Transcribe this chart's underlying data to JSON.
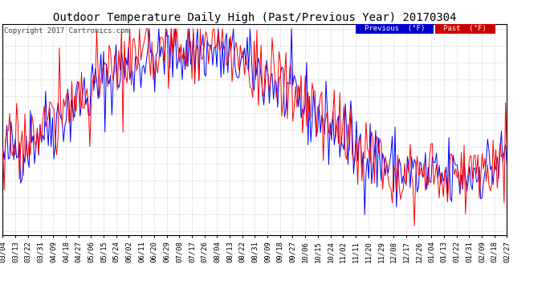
{
  "title": "Outdoor Temperature Daily High (Past/Previous Year) 20170304",
  "copyright": "Copyright 2017 Cartronics.com",
  "yticks": [
    2.6,
    10.4,
    18.2,
    26.0,
    33.8,
    41.6,
    49.5,
    57.3,
    65.1,
    72.9,
    80.7,
    88.5,
    96.3
  ],
  "ymin": 1.0,
  "ymax": 98.5,
  "legend_previous_label": "Previous  (°F)",
  "legend_past_label": "Past  (°F)",
  "previous_color": "#0000ff",
  "past_color": "#ff0000",
  "legend_previous_bg": "#0000cc",
  "legend_past_bg": "#cc0000",
  "background_color": "#ffffff",
  "grid_color": "#cccccc",
  "title_fontsize": 10,
  "tick_fontsize": 7,
  "xlabel_fontsize": 6.5,
  "copyright_fontsize": 6.5,
  "xtick_labels": [
    "03/04",
    "03/13",
    "03/22",
    "03/31",
    "04/09",
    "04/18",
    "04/27",
    "05/06",
    "05/15",
    "05/24",
    "06/02",
    "06/11",
    "06/20",
    "06/29",
    "07/08",
    "07/17",
    "07/26",
    "08/04",
    "08/13",
    "08/22",
    "08/31",
    "09/09",
    "09/18",
    "09/27",
    "10/06",
    "10/15",
    "10/24",
    "11/02",
    "11/11",
    "11/20",
    "11/29",
    "12/08",
    "12/17",
    "12/26",
    "01/04",
    "01/13",
    "01/22",
    "01/31",
    "02/09",
    "02/18",
    "02/27"
  ]
}
